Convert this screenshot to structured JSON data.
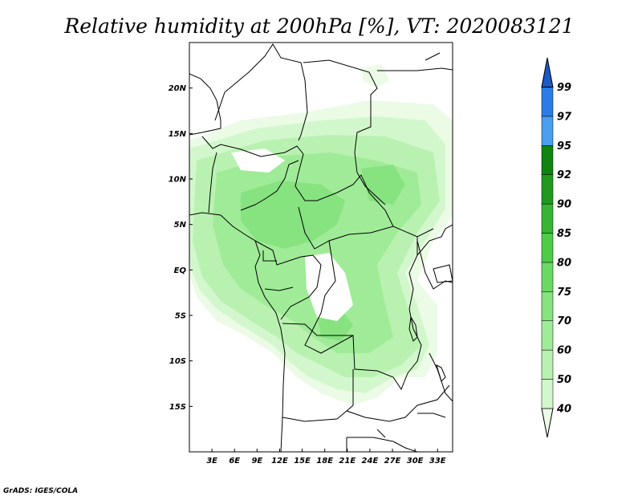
{
  "chart_data": {
    "type": "heatmap",
    "title": "Relative humidity at 200hPa [%], VT: 2020083121",
    "variable": "Relative humidity",
    "level": "200hPa",
    "units": "%",
    "valid_time": "2020083121",
    "x_ticks": [
      "3E",
      "6E",
      "9E",
      "12E",
      "15E",
      "18E",
      "21E",
      "24E",
      "27E",
      "30E",
      "33E"
    ],
    "x_tick_values": [
      3,
      6,
      9,
      12,
      15,
      18,
      21,
      24,
      27,
      30,
      33
    ],
    "y_ticks": [
      "20N",
      "15N",
      "10N",
      "5N",
      "EQ",
      "5S",
      "10S",
      "15S"
    ],
    "y_tick_values": [
      20,
      15,
      10,
      5,
      0,
      -5,
      -10,
      -15
    ],
    "xlim": [
      0,
      35
    ],
    "ylim": [
      -20,
      25
    ],
    "colorbar": {
      "levels": [
        "40",
        "50",
        "60",
        "70",
        "75",
        "80",
        "85",
        "90",
        "92",
        "95",
        "97",
        "99"
      ],
      "colors": [
        "#ebfbe6",
        "#d3f7cc",
        "#b9f1b1",
        "#a0eb98",
        "#86e380",
        "#6ad964",
        "#4ecc48",
        "#37b532",
        "#20991e",
        "#108310",
        "#4b9ef0",
        "#2a7de6",
        "#1d5ac8"
      ]
    },
    "credit": "GrADS: IGES/COLA"
  }
}
